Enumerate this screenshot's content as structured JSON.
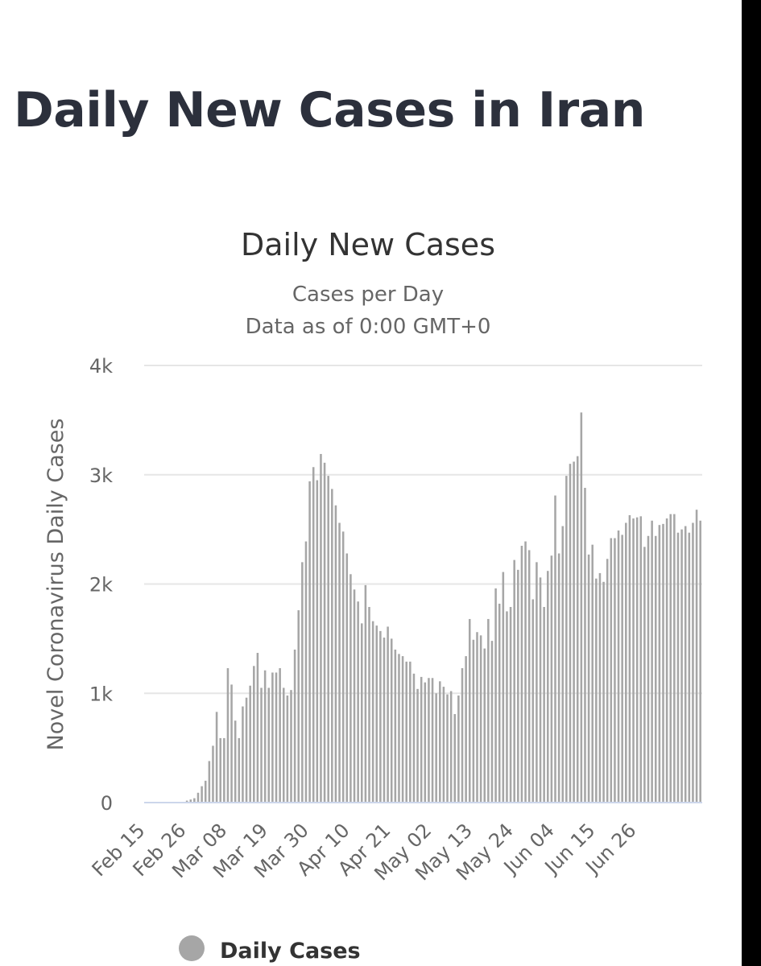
{
  "page": {
    "title": "Daily New Cases in Iran"
  },
  "chart_data": {
    "type": "bar",
    "title": "Daily New Cases",
    "subtitle": [
      "Cases per Day",
      "Data as of 0:00 GMT+0"
    ],
    "xlabel": "",
    "ylabel": "Novel Coronavirus Daily Cases",
    "ylim": [
      0,
      4000
    ],
    "y_ticks": [
      {
        "value": 0,
        "label": "0"
      },
      {
        "value": 1000,
        "label": "1k"
      },
      {
        "value": 2000,
        "label": "2k"
      },
      {
        "value": 3000,
        "label": "3k"
      },
      {
        "value": 4000,
        "label": "4k"
      }
    ],
    "x_ticks": [
      {
        "index": 0,
        "label": "Feb 15"
      },
      {
        "index": 11,
        "label": "Feb 26"
      },
      {
        "index": 22,
        "label": "Mar 08"
      },
      {
        "index": 33,
        "label": "Mar 19"
      },
      {
        "index": 44,
        "label": "Mar 30"
      },
      {
        "index": 55,
        "label": "Apr 10"
      },
      {
        "index": 66,
        "label": "Apr 21"
      },
      {
        "index": 77,
        "label": "May 02"
      },
      {
        "index": 88,
        "label": "May 13"
      },
      {
        "index": 99,
        "label": "May 24"
      },
      {
        "index": 110,
        "label": "Jun 04"
      },
      {
        "index": 121,
        "label": "Jun 15"
      },
      {
        "index": 132,
        "label": "Jun 26"
      }
    ],
    "grid": true,
    "legend_position": "bottom-left",
    "series": [
      {
        "name": "Daily Cases",
        "color": "#a6a6a6",
        "values": [
          0,
          0,
          0,
          0,
          0,
          0,
          0,
          0,
          0,
          0,
          0,
          18,
          28,
          40,
          90,
          150,
          200,
          380,
          520,
          830,
          590,
          590,
          1230,
          1080,
          750,
          590,
          880,
          960,
          1070,
          1250,
          1370,
          1050,
          1210,
          1050,
          1190,
          1190,
          1230,
          1050,
          980,
          1030,
          1400,
          1760,
          2200,
          2390,
          2940,
          3070,
          2950,
          3190,
          3110,
          2990,
          2870,
          2720,
          2560,
          2480,
          2280,
          2090,
          1950,
          1840,
          1640,
          1990,
          1790,
          1660,
          1620,
          1570,
          1510,
          1610,
          1500,
          1400,
          1360,
          1340,
          1290,
          1290,
          1180,
          1040,
          1150,
          1100,
          1140,
          1140,
          1000,
          1110,
          1060,
          990,
          1020,
          810,
          980,
          1230,
          1340,
          1680,
          1490,
          1560,
          1530,
          1410,
          1680,
          1480,
          1960,
          1820,
          2110,
          1750,
          1790,
          2220,
          2130,
          2350,
          2390,
          2310,
          1860,
          2200,
          2060,
          1790,
          2120,
          2260,
          2810,
          2280,
          2530,
          2990,
          3100,
          3120,
          3170,
          3570,
          2880,
          2270,
          2360,
          2050,
          2100,
          2020,
          2230,
          2420,
          2420,
          2490,
          2450,
          2560,
          2630,
          2600,
          2610,
          2620,
          2340,
          2440,
          2580,
          2440,
          2540,
          2550,
          2600,
          2640,
          2640,
          2470,
          2500,
          2530,
          2470,
          2560,
          2680,
          2580
        ]
      }
    ]
  }
}
